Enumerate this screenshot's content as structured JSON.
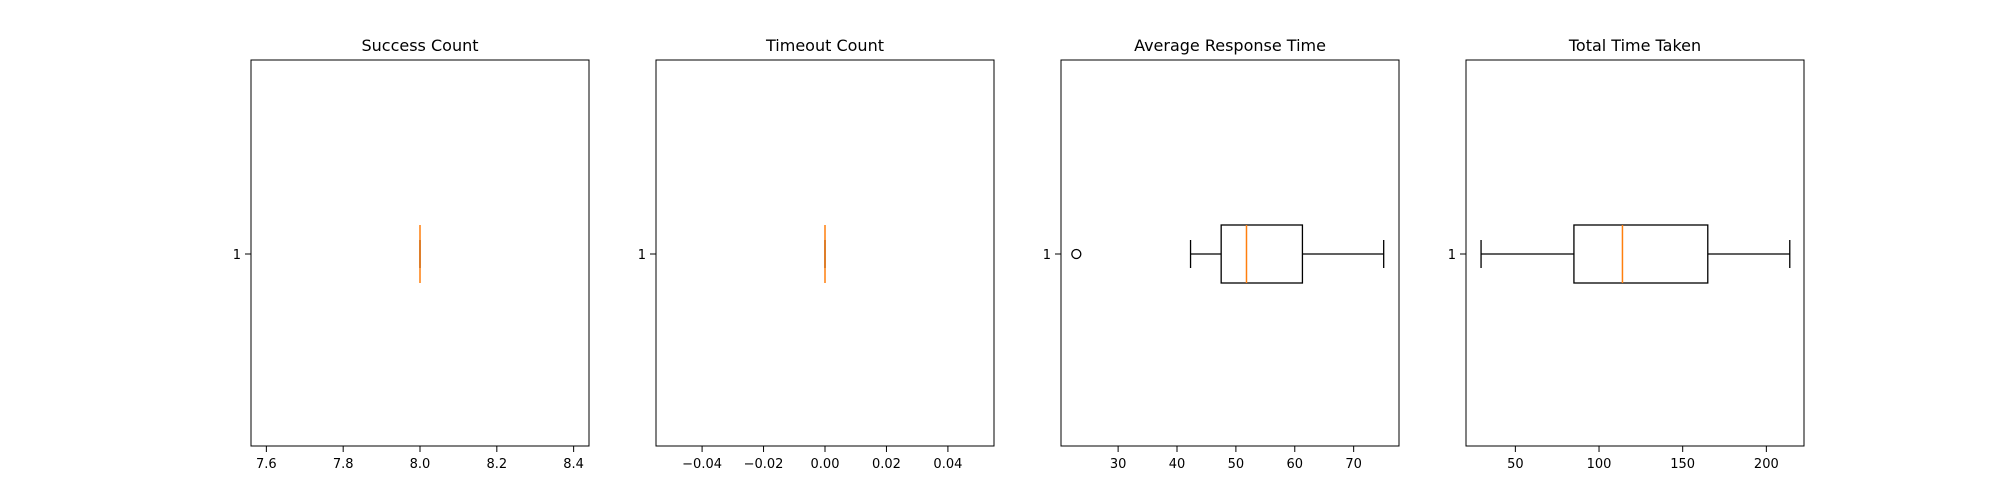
{
  "figure": {
    "background": "#ffffff",
    "box_color": "#000000",
    "median_color": "#ff7f0e",
    "flier_marker": "open-circle"
  },
  "chart_data": [
    {
      "type": "boxplot",
      "orientation": "horizontal",
      "title": "Success Count",
      "ytick_labels": [
        "1"
      ],
      "xticks": [
        "7.6",
        "7.8",
        "8.0",
        "8.2",
        "8.4"
      ],
      "xlim": [
        7.56,
        8.44
      ],
      "box": {
        "whislo": 8.0,
        "q1": 8.0,
        "med": 8.0,
        "q3": 8.0,
        "whishi": 8.0,
        "fliers": []
      }
    },
    {
      "type": "boxplot",
      "orientation": "horizontal",
      "title": "Timeout Count",
      "ytick_labels": [
        "1"
      ],
      "xticks": [
        "−0.04",
        "−0.02",
        "0.00",
        "0.02",
        "0.04"
      ],
      "xlim": [
        -0.055,
        0.055
      ],
      "box": {
        "whislo": 0.0,
        "q1": 0.0,
        "med": 0.0,
        "q3": 0.0,
        "whishi": 0.0,
        "fliers": []
      }
    },
    {
      "type": "boxplot",
      "orientation": "horizontal",
      "title": "Average Response Time",
      "ytick_labels": [
        "1"
      ],
      "xticks": [
        "30",
        "40",
        "50",
        "60",
        "70"
      ],
      "xlim": [
        20.3,
        77.7
      ],
      "box": {
        "whislo": 42.3,
        "q1": 47.5,
        "med": 51.8,
        "q3": 61.3,
        "whishi": 75.1,
        "fliers": [
          22.9
        ]
      }
    },
    {
      "type": "boxplot",
      "orientation": "horizontal",
      "title": "Total Time Taken",
      "ytick_labels": [
        "1"
      ],
      "xticks": [
        "50",
        "100",
        "150",
        "200"
      ],
      "xlim": [
        20.5,
        222.5
      ],
      "box": {
        "whislo": 29.5,
        "q1": 85.0,
        "med": 114.0,
        "q3": 165.0,
        "whishi": 214.0,
        "fliers": []
      }
    }
  ]
}
